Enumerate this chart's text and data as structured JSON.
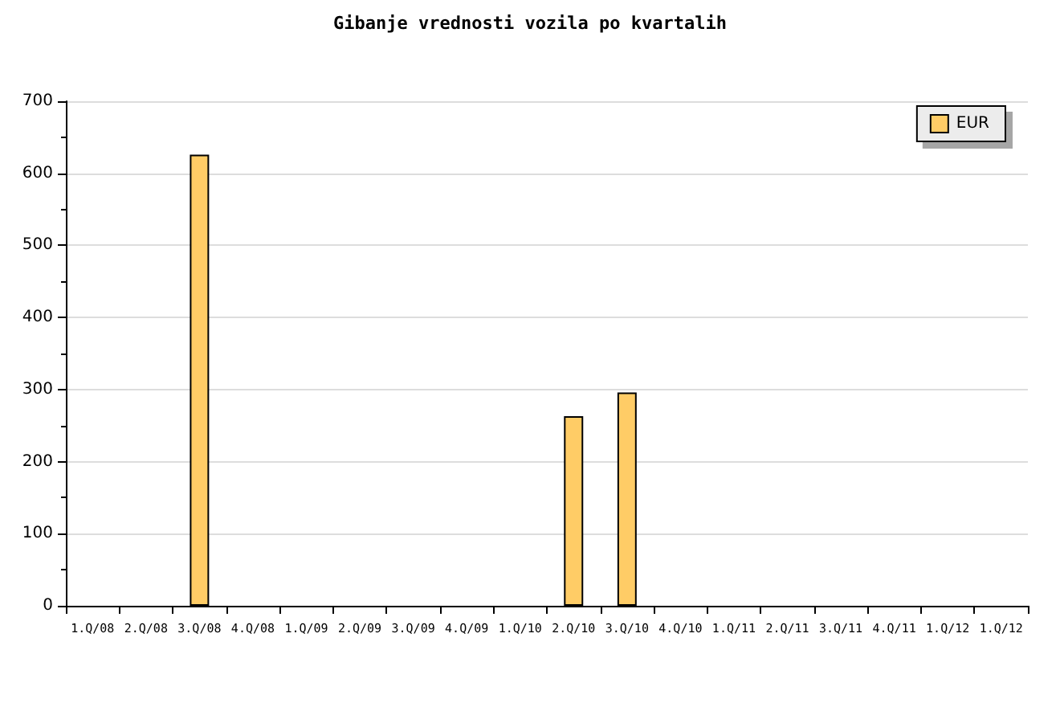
{
  "chart_data": {
    "type": "bar",
    "title": "Gibanje vrednosti vozila po kvartalih",
    "categories": [
      "1.Q/08",
      "2.Q/08",
      "3.Q/08",
      "4.Q/08",
      "1.Q/09",
      "2.Q/09",
      "3.Q/09",
      "4.Q/09",
      "1.Q/10",
      "2.Q/10",
      "3.Q/10",
      "4.Q/10",
      "1.Q/11",
      "2.Q/11",
      "3.Q/11",
      "4.Q/11",
      "1.Q/12",
      "1.Q/12"
    ],
    "series": [
      {
        "name": "EUR",
        "color": "#ffcc66",
        "values": [
          0,
          0,
          626,
          0,
          0,
          0,
          0,
          0,
          0,
          263,
          296,
          0,
          0,
          0,
          0,
          0,
          0,
          0
        ]
      }
    ],
    "ylim": [
      0,
      700
    ],
    "yticks": [
      0,
      100,
      200,
      300,
      400,
      500,
      600,
      700
    ],
    "grid": "y",
    "legend": "top right"
  }
}
